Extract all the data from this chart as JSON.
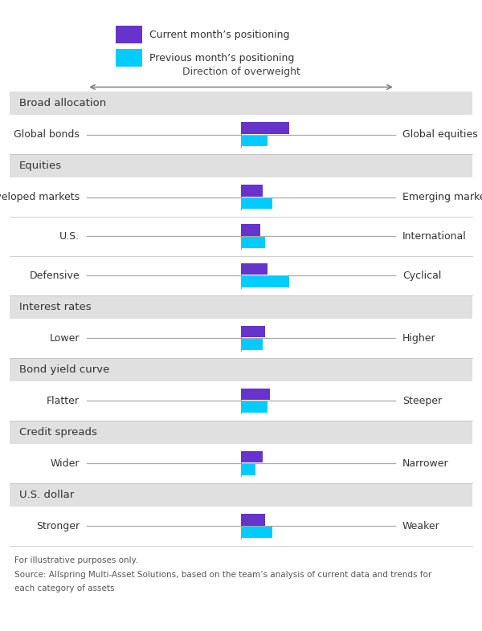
{
  "legend_current_label": "Current month’s positioning",
  "legend_previous_label": "Previous month’s positioning",
  "current_color": "#6633cc",
  "previous_color": "#00ccff",
  "direction_label": "Direction of overweight",
  "background_color": "#ffffff",
  "section_bg_color": "#e0e0e0",
  "row_bg_color": "#ffffff",
  "line_color": "#aaaaaa",
  "sections": [
    {
      "header": "Broad allocation",
      "rows": [
        {
          "left_label": "Global bonds",
          "right_label": "Global equities",
          "current_val": 1.0,
          "previous_val": 0.55
        }
      ]
    },
    {
      "header": "Equities",
      "rows": [
        {
          "left_label": "Developed markets",
          "right_label": "Emerging markets",
          "current_val": 0.45,
          "previous_val": 0.65
        },
        {
          "left_label": "U.S.",
          "right_label": "International",
          "current_val": 0.4,
          "previous_val": 0.5
        },
        {
          "left_label": "Defensive",
          "right_label": "Cyclical",
          "current_val": 0.55,
          "previous_val": 1.0
        }
      ]
    },
    {
      "header": "Interest rates",
      "rows": [
        {
          "left_label": "Lower",
          "right_label": "Higher",
          "current_val": 0.5,
          "previous_val": 0.45
        }
      ]
    },
    {
      "header": "Bond yield curve",
      "rows": [
        {
          "left_label": "Flatter",
          "right_label": "Steeper",
          "current_val": 0.6,
          "previous_val": 0.55
        }
      ]
    },
    {
      "header": "Credit spreads",
      "rows": [
        {
          "left_label": "Wider",
          "right_label": "Narrower",
          "current_val": 0.45,
          "previous_val": 0.3
        }
      ]
    },
    {
      "header": "U.S. dollar",
      "rows": [
        {
          "left_label": "Stronger",
          "right_label": "Weaker",
          "current_val": 0.5,
          "previous_val": 0.65
        }
      ]
    }
  ],
  "footer_lines": [
    "For illustrative purposes only.",
    "Source: Allspring Multi-Asset Solutions, based on the team’s analysis of current data and trends for",
    "each category of assets"
  ]
}
